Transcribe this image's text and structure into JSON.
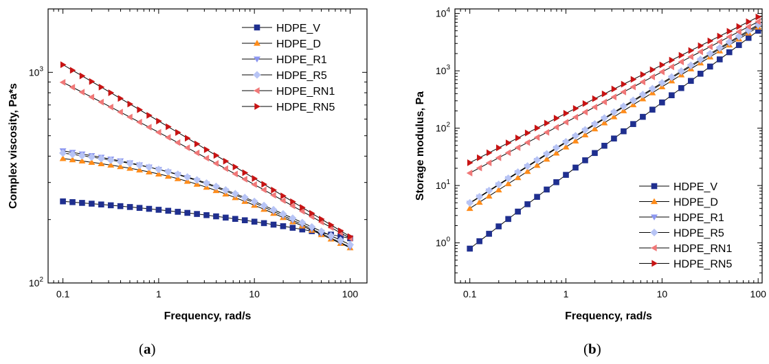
{
  "captions": {
    "a_open": "(",
    "a_letter": "a",
    "a_close": ")",
    "b_open": "(",
    "b_letter": "b",
    "b_close": ")"
  },
  "colors": {
    "HDPE_V": "#1f2f8f",
    "HDPE_D": "#ff8c1a",
    "HDPE_R1": "#8c96f0",
    "HDPE_R5": "#b7c4f5",
    "HDPE_RN1": "#f07878",
    "HDPE_RN5": "#c81414"
  },
  "chart_data": [
    {
      "type": "scatter",
      "panel": "a",
      "xlabel": "Frequency, rad/s",
      "ylabel": "Complex viscosity, Pa*s",
      "xscale": "log",
      "yscale": "log",
      "xlim": [
        0.07,
        150
      ],
      "ylim": [
        100,
        2000
      ],
      "xticks": [
        0.1,
        1,
        10,
        100
      ],
      "xtick_labels": [
        "0.1",
        "1",
        "10",
        "100"
      ],
      "yticks": [
        100,
        1000
      ],
      "ytick_labels": [
        "10^2",
        "10^3"
      ],
      "legend": "top-right",
      "series": [
        {
          "name": "HDPE_V",
          "marker": "square",
          "from": [
            0.1,
            246
          ],
          "knee": [
            8.0,
            212
          ],
          "to": [
            100,
            163
          ],
          "p": 1.1,
          "s": 0.8
        },
        {
          "name": "HDPE_D",
          "marker": "triangle-up",
          "from": [
            0.1,
            392
          ],
          "knee": [
            2.0,
            336
          ],
          "to": [
            100,
            147
          ],
          "p": 2.0,
          "s": 0.8
        },
        {
          "name": "HDPE_R1",
          "marker": "triangle-down",
          "from": [
            0.1,
            426
          ],
          "knee": [
            2.0,
            348
          ],
          "to": [
            100,
            148
          ],
          "p": 2.0,
          "s": 0.8
        },
        {
          "name": "HDPE_R5",
          "marker": "diamond",
          "from": [
            0.1,
            416
          ],
          "knee": [
            2.0,
            352
          ],
          "to": [
            100,
            152
          ],
          "p": 2.0,
          "s": 0.8
        },
        {
          "name": "HDPE_RN1",
          "marker": "triangle-left",
          "from": [
            0.1,
            905
          ],
          "knee": [
            1.0,
            536
          ],
          "to": [
            100,
            163
          ],
          "p": 1.2,
          "s": 0.8
        },
        {
          "name": "HDPE_RN5",
          "marker": "triangle-right",
          "from": [
            0.1,
            1092
          ],
          "knee": [
            1.0,
            596
          ],
          "to": [
            100,
            166
          ],
          "p": 1.2,
          "s": 0.8
        }
      ]
    },
    {
      "type": "scatter",
      "panel": "b",
      "xlabel": "Frequency, rad/s",
      "ylabel": "Storage modulus, Pa",
      "xscale": "log",
      "yscale": "log",
      "xlim": [
        0.07,
        110
      ],
      "ylim": [
        0.2,
        12000
      ],
      "xticks": [
        0.1,
        1,
        10,
        100
      ],
      "xtick_labels": [
        "0.1",
        "1",
        "10",
        "100"
      ],
      "yticks": [
        1,
        10,
        100,
        1000,
        10000
      ],
      "ytick_labels": [
        "10^0",
        "10^1",
        "10^2",
        "10^3",
        "10^4"
      ],
      "legend": "bottom-right",
      "series": [
        {
          "name": "HDPE_V",
          "marker": "square",
          "from": [
            0.1,
            0.8
          ],
          "knee": [
            1.0,
            16
          ],
          "to": [
            100,
            5000
          ],
          "p": 1.0,
          "s": 0.5
        },
        {
          "name": "HDPE_D",
          "marker": "triangle-up",
          "from": [
            0.1,
            4.0
          ],
          "knee": [
            1.0,
            48
          ],
          "to": [
            100,
            5800
          ],
          "p": 1.4,
          "s": 0.5
        },
        {
          "name": "HDPE_R1",
          "marker": "triangle-down",
          "from": [
            0.1,
            4.9
          ],
          "knee": [
            1.0,
            58
          ],
          "to": [
            100,
            6100
          ],
          "p": 1.4,
          "s": 0.5
        },
        {
          "name": "HDPE_R5",
          "marker": "diamond",
          "from": [
            0.1,
            5.0
          ],
          "knee": [
            1.0,
            60
          ],
          "to": [
            100,
            6400
          ],
          "p": 1.4,
          "s": 0.5
        },
        {
          "name": "HDPE_RN1",
          "marker": "triangle-left",
          "from": [
            0.1,
            16.5
          ],
          "knee": [
            1.0,
            128
          ],
          "to": [
            100,
            7200
          ],
          "p": 1.4,
          "s": 0.5
        },
        {
          "name": "HDPE_RN5",
          "marker": "triangle-right",
          "from": [
            0.1,
            25
          ],
          "knee": [
            1.0,
            185
          ],
          "to": [
            100,
            8700
          ],
          "p": 1.4,
          "s": 0.5
        }
      ]
    }
  ]
}
